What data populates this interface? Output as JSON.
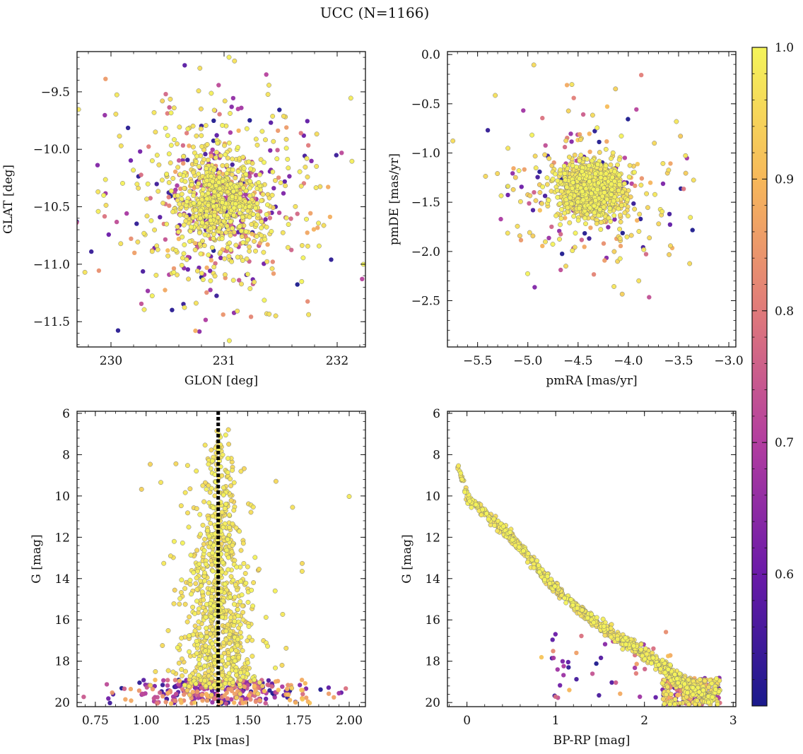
{
  "figure": {
    "title": "UCC (N=1166)"
  },
  "colors": {
    "cmap": [
      "#1a1a8c",
      "#6a1aa8",
      "#b23da0",
      "#e07a7a",
      "#f7b85a",
      "#f4f45a"
    ],
    "edge": "#7a7a7a",
    "median_line": "#000000"
  },
  "colorbar": {
    "range": [
      0.5,
      1.0
    ],
    "ticks": [
      0.6,
      0.7,
      0.8,
      0.9,
      1.0
    ],
    "tick_labels": [
      "0.6",
      "0.7",
      "0.8",
      "0.9",
      "1.0"
    ]
  },
  "chart_data": [
    {
      "type": "scatter",
      "id": "lonlat",
      "xlabel": "GLON [deg]",
      "ylabel": "GLAT [deg]",
      "xlim": [
        229.7,
        232.25
      ],
      "ylim": [
        -11.72,
        -9.15
      ],
      "xticks": [
        230,
        231,
        232
      ],
      "xtick_labels": [
        "230",
        "231",
        "232"
      ],
      "yticks": [
        -9.5,
        -10.0,
        -10.5,
        -11.0,
        -11.5
      ],
      "ytick_labels": [
        "−9.5",
        "−10.0",
        "−10.5",
        "−11.0",
        "−11.5"
      ],
      "n_points": 1166,
      "center": [
        230.95,
        -10.45
      ],
      "spread": [
        0.42,
        0.42
      ],
      "color_by": "membership probability"
    },
    {
      "type": "scatter",
      "id": "pm",
      "xlabel": "pmRA [mas/yr]",
      "ylabel": "pmDE [mas/yr]",
      "xlim": [
        -5.8,
        -2.93
      ],
      "ylim": [
        -2.97,
        0.03
      ],
      "xticks": [
        -5.5,
        -5.0,
        -4.5,
        -4.0,
        -3.5,
        -3.0
      ],
      "xtick_labels": [
        "−5.5",
        "−5.0",
        "−4.5",
        "−4.0",
        "−3.5",
        "−3.0"
      ],
      "yticks": [
        0.0,
        -0.5,
        -1.0,
        -1.5,
        -2.0,
        -2.5
      ],
      "ytick_labels": [
        "0.0",
        "−0.5",
        "−1.0",
        "−1.5",
        "−2.0",
        "−2.5"
      ],
      "n_points": 1166,
      "center": [
        -4.38,
        -1.38
      ],
      "spread": [
        0.22,
        0.2
      ],
      "color_by": "membership probability"
    },
    {
      "type": "scatter",
      "id": "plx",
      "xlabel": "Plx [mas]",
      "ylabel": "G [mag]",
      "xlim": [
        0.66,
        2.08
      ],
      "ylim": [
        20.2,
        5.9
      ],
      "xticks": [
        0.75,
        1.0,
        1.25,
        1.5,
        1.75,
        2.0
      ],
      "xtick_labels": [
        "0.75",
        "1.00",
        "1.25",
        "1.50",
        "1.75",
        "2.00"
      ],
      "yticks": [
        6,
        8,
        10,
        12,
        14,
        16,
        18,
        20
      ],
      "ytick_labels": [
        "6",
        "8",
        "10",
        "12",
        "14",
        "16",
        "18",
        "20"
      ],
      "n_points": 1166,
      "median_plx": 1.355,
      "color_by": "membership probability"
    },
    {
      "type": "scatter",
      "id": "cmd",
      "xlabel": "BP-RP [mag]",
      "ylabel": "G [mag]",
      "xlim": [
        -0.22,
        3.03
      ],
      "ylim": [
        20.2,
        5.9
      ],
      "xticks": [
        0,
        1,
        2,
        3
      ],
      "xtick_labels": [
        "0",
        "1",
        "2",
        "3"
      ],
      "yticks": [
        6,
        8,
        10,
        12,
        14,
        16,
        18,
        20
      ],
      "ytick_labels": [
        "6",
        "8",
        "10",
        "12",
        "14",
        "16",
        "18",
        "20"
      ],
      "n_points": 1166,
      "sequence": [
        [
          -0.15,
          7.8
        ],
        [
          0.0,
          10.0
        ],
        [
          0.5,
          12.0
        ],
        [
          1.0,
          14.5
        ],
        [
          1.5,
          16.3
        ],
        [
          2.0,
          17.6
        ],
        [
          2.5,
          19.2
        ],
        [
          2.8,
          19.9
        ]
      ],
      "color_by": "membership probability"
    }
  ]
}
